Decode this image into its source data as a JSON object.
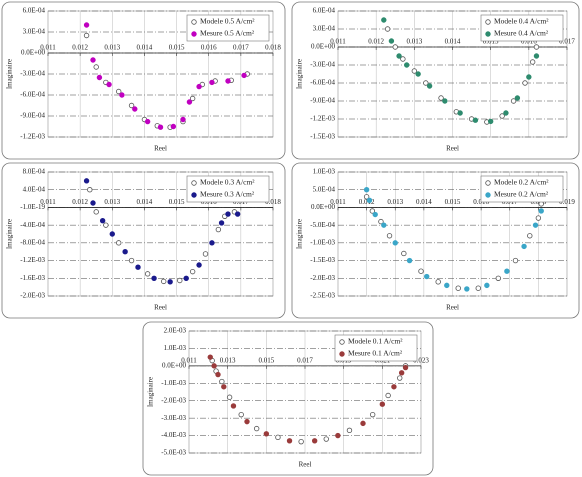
{
  "chart_data": [
    {
      "type": "scatter",
      "x_label": "Reel",
      "y_label": "Imaginaire",
      "legend": "upper right",
      "grid": true,
      "xlim": [
        0.011,
        0.018
      ],
      "xticks": [
        0.011,
        0.012,
        0.013,
        0.014,
        0.015,
        0.016,
        0.017,
        0.018
      ],
      "ylim": [
        -0.0012,
        0.0006
      ],
      "yticks": [
        {
          "value": 0.0006,
          "label": "6.0E-04"
        },
        {
          "value": 0.0003,
          "label": "3.0E-04"
        },
        {
          "value": 0,
          "label": "0.0E+00"
        },
        {
          "value": -0.0003,
          "label": "-3.0E-04"
        },
        {
          "value": -0.0006,
          "label": "-6.0E-04"
        },
        {
          "value": -0.0009,
          "label": "-9.0E-04"
        },
        {
          "value": -0.0012,
          "label": "-1.2E-03"
        }
      ],
      "series": [
        {
          "name": "Modele 0.5 A/cm²",
          "color": "#555555",
          "marker": "open",
          "x": [
            0.0122,
            0.0125,
            0.0128,
            0.0132,
            0.0136,
            0.014,
            0.0144,
            0.0148,
            0.0152,
            0.0155,
            0.0158,
            0.0162,
            0.0167,
            0.0172
          ],
          "values": [
            0.00025,
            -0.0002,
            -0.00042,
            -0.00055,
            -0.00075,
            -0.00095,
            -0.00104,
            -0.00106,
            -0.00098,
            -0.00065,
            -0.00045,
            -0.0004,
            -0.00039,
            -0.0003
          ]
        },
        {
          "name": "Mesure 0.5 A/cm²",
          "color": "#c000c0",
          "marker": "filled",
          "x": [
            0.0122,
            0.0124,
            0.0126,
            0.0129,
            0.0133,
            0.0137,
            0.0141,
            0.0145,
            0.0149,
            0.0152,
            0.0154,
            0.0157,
            0.0161,
            0.0166,
            0.0171
          ],
          "values": [
            0.0004,
            -0.0001,
            -0.00035,
            -0.00045,
            -0.0006,
            -0.0008,
            -0.00098,
            -0.00106,
            -0.00105,
            -0.00095,
            -0.0007,
            -0.00048,
            -0.00042,
            -0.0004,
            -0.00032
          ]
        }
      ]
    },
    {
      "type": "scatter",
      "x_label": "Reel",
      "y_label": "Imaginaire",
      "legend": "upper right",
      "grid": true,
      "xlim": [
        0.011,
        0.017
      ],
      "xticks": [
        0.011,
        0.012,
        0.013,
        0.014,
        0.015,
        0.016,
        0.017
      ],
      "ylim": [
        -0.0015,
        0.0006
      ],
      "yticks": [
        {
          "value": 0.0006,
          "label": "6.0E-04"
        },
        {
          "value": 0.0003,
          "label": "3.0E-04"
        },
        {
          "value": 0,
          "label": "0.0E+00"
        },
        {
          "value": -0.0003,
          "label": "-3.0E-04"
        },
        {
          "value": -0.0006,
          "label": "-6.0E-04"
        },
        {
          "value": -0.0009,
          "label": "-9.0E-04"
        },
        {
          "value": -0.0012,
          "label": "-1.2E-03"
        },
        {
          "value": -0.0015,
          "label": "-1.5E-03"
        }
      ],
      "series": [
        {
          "name": "Modele 0.4 A/cm²",
          "color": "#555555",
          "marker": "open",
          "x": [
            0.0123,
            0.0125,
            0.0127,
            0.013,
            0.0133,
            0.0137,
            0.0141,
            0.0145,
            0.0149,
            0.0153,
            0.0156,
            0.0159,
            0.0161,
            0.0162
          ],
          "values": [
            0.0003,
            0,
            -0.0002,
            -0.0004,
            -0.0006,
            -0.00085,
            -0.00108,
            -0.0012,
            -0.00125,
            -0.00115,
            -0.0009,
            -0.0006,
            -0.00025,
            0
          ]
        },
        {
          "name": "Mesure 0.4 A/cm²",
          "color": "#2e8b6e",
          "marker": "filled",
          "x": [
            0.0122,
            0.0124,
            0.0126,
            0.0128,
            0.0131,
            0.0134,
            0.0138,
            0.0142,
            0.0146,
            0.015,
            0.0154,
            0.0157,
            0.016,
            0.0162
          ],
          "values": [
            0.00045,
            0.0001,
            -0.00015,
            -0.0003,
            -0.00045,
            -0.00065,
            -0.0009,
            -0.0011,
            -0.00122,
            -0.00124,
            -0.0011,
            -0.00085,
            -0.0005,
            -0.00015
          ]
        }
      ]
    },
    {
      "type": "scatter",
      "x_label": "Reel",
      "y_label": "Imaginaire",
      "legend": "upper right",
      "grid": true,
      "xlim": [
        0.011,
        0.018
      ],
      "xticks": [
        0.011,
        0.012,
        0.013,
        0.014,
        0.015,
        0.016,
        0.017,
        0.018
      ],
      "ylim": [
        -0.002,
        0.0008
      ],
      "yticks": [
        {
          "value": 0.0008,
          "label": "8.0E-04"
        },
        {
          "value": 0.0004,
          "label": "4.0E-04"
        },
        {
          "value": -1e-19,
          "label": "-1.0E-19"
        },
        {
          "value": -0.0004,
          "label": "-4.0E-04"
        },
        {
          "value": -0.0008,
          "label": "-8.0E-04"
        },
        {
          "value": -0.0012,
          "label": "-1.2E-03"
        },
        {
          "value": -0.0016,
          "label": "-1.6E-03"
        },
        {
          "value": -0.002,
          "label": "-2.0E-03"
        }
      ],
      "series": [
        {
          "name": "Modele 0.3 A/cm²",
          "color": "#555555",
          "marker": "open",
          "x": [
            0.0123,
            0.0125,
            0.0128,
            0.0132,
            0.0136,
            0.0141,
            0.0146,
            0.0151,
            0.0155,
            0.0159,
            0.0163,
            0.0165,
            0.0168
          ],
          "values": [
            0.0004,
            -0.0001,
            -0.0004,
            -0.0008,
            -0.0012,
            -0.0015,
            -0.00167,
            -0.00165,
            -0.00145,
            -0.00105,
            -0.0005,
            -0.0002,
            -0.0001
          ]
        },
        {
          "name": "Mesure 0.3 A/cm²",
          "color": "#1a1a8c",
          "marker": "filled",
          "x": [
            0.0122,
            0.0124,
            0.0127,
            0.013,
            0.0134,
            0.0138,
            0.0143,
            0.0148,
            0.0153,
            0.0157,
            0.0161,
            0.0164,
            0.0166,
            0.0169
          ],
          "values": [
            0.0006,
            0.0001,
            -0.0003,
            -0.0006,
            -0.001,
            -0.00135,
            -0.0016,
            -0.00168,
            -0.0016,
            -0.0013,
            -0.0008,
            -0.00035,
            -0.00015,
            -0.00015
          ]
        }
      ]
    },
    {
      "type": "scatter",
      "x_label": "Reel",
      "y_label": "Imaginaire",
      "legend": "upper right",
      "grid": true,
      "xlim": [
        0.011,
        0.019
      ],
      "xticks": [
        0.011,
        0.012,
        0.013,
        0.014,
        0.015,
        0.016,
        0.017,
        0.018,
        0.019
      ],
      "ylim": [
        -0.0025,
        0.001
      ],
      "yticks": [
        {
          "value": 0.001,
          "label": "1.0E-03"
        },
        {
          "value": 0.0005,
          "label": "5.0E-04"
        },
        {
          "value": 0,
          "label": "0.0E+00"
        },
        {
          "value": -0.0005,
          "label": "-5.0E-04"
        },
        {
          "value": -0.001,
          "label": "-1.0E-03"
        },
        {
          "value": -0.0015,
          "label": "-1.5E-03"
        },
        {
          "value": -0.002,
          "label": "-2.0E-03"
        },
        {
          "value": -0.0025,
          "label": "-2.5E-03"
        }
      ],
      "series": [
        {
          "name": "Modele 0.2 A/cm²",
          "color": "#555555",
          "marker": "open",
          "x": [
            0.012,
            0.0122,
            0.0125,
            0.0128,
            0.0133,
            0.0139,
            0.0145,
            0.0152,
            0.0159,
            0.0166,
            0.0172,
            0.0177,
            0.018,
            0.0181
          ],
          "values": [
            0.0003,
            -0.0001,
            -0.0004,
            -0.0008,
            -0.0013,
            -0.0018,
            -0.0021,
            -0.00228,
            -0.00228,
            -0.002,
            -0.0015,
            -0.0008,
            -0.0003,
            0.0001
          ]
        },
        {
          "name": "Mesure 0.2 A/cm²",
          "color": "#3aa6c8",
          "marker": "filled",
          "x": [
            0.012,
            0.0121,
            0.0123,
            0.0126,
            0.013,
            0.0135,
            0.0141,
            0.0148,
            0.0155,
            0.0162,
            0.0169,
            0.0175,
            0.0179,
            0.0181
          ],
          "values": [
            0.0005,
            0.0002,
            -0.0002,
            -0.0005,
            -0.001,
            -0.0015,
            -0.00195,
            -0.0022,
            -0.0023,
            -0.0022,
            -0.0018,
            -0.0011,
            -0.0005,
            -0.0001
          ]
        }
      ]
    },
    {
      "type": "scatter",
      "x_label": "Reel",
      "y_label": "Imaginaire",
      "legend": "upper right",
      "grid": true,
      "xlim": [
        0.011,
        0.023
      ],
      "xticks": [
        0.011,
        0.013,
        0.015,
        0.017,
        0.019,
        0.021,
        0.023
      ],
      "ylim": [
        -0.005,
        0.002
      ],
      "yticks": [
        {
          "value": 0.002,
          "label": "2.0E-03"
        },
        {
          "value": 0.001,
          "label": "1.0E-03"
        },
        {
          "value": 0,
          "label": "0.0E+00"
        },
        {
          "value": -0.001,
          "label": "-1.0E-03"
        },
        {
          "value": -0.002,
          "label": "-2.0E-03"
        },
        {
          "value": -0.003,
          "label": "-3.0E-03"
        },
        {
          "value": -0.004,
          "label": "-4.0E-03"
        },
        {
          "value": -0.005,
          "label": "-5.0E-03"
        }
      ],
      "series": [
        {
          "name": "Modele 0.1 A/cm²",
          "color": "#555555",
          "marker": "open",
          "x": [
            0.0122,
            0.0124,
            0.0127,
            0.0131,
            0.0137,
            0.0145,
            0.0156,
            0.0168,
            0.0181,
            0.0193,
            0.0205,
            0.0213,
            0.0219,
            0.0222
          ],
          "values": [
            0.0003,
            -0.0003,
            -0.0009,
            -0.0018,
            -0.0028,
            -0.0036,
            -0.0041,
            -0.00435,
            -0.0042,
            -0.0037,
            -0.0028,
            -0.0017,
            -0.0007,
            0
          ]
        },
        {
          "name": "Mesure 0.1 A/cm²",
          "color": "#9a3b3b",
          "marker": "filled",
          "x": [
            0.0121,
            0.0123,
            0.0125,
            0.0128,
            0.0133,
            0.014,
            0.015,
            0.0162,
            0.0175,
            0.0187,
            0.02,
            0.021,
            0.0216,
            0.022,
            0.0222
          ],
          "values": [
            0.0005,
            0,
            -0.0005,
            -0.0012,
            -0.0023,
            -0.0032,
            -0.0039,
            -0.0043,
            -0.0043,
            -0.004,
            -0.0033,
            -0.0022,
            -0.0012,
            -0.0004,
            -0.0001
          ]
        }
      ]
    }
  ]
}
